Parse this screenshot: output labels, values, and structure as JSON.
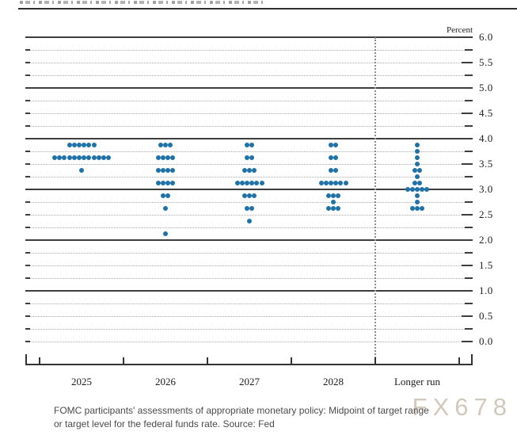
{
  "chart": {
    "percent_label": "Percent",
    "y_tick_labels": [
      "6.0",
      "5.5",
      "5.0",
      "4.5",
      "4.0",
      "3.5",
      "3.0",
      "2.5",
      "2.0",
      "1.5",
      "1.0",
      "0.5",
      "0.0"
    ],
    "x_tick_labels": [
      "2025",
      "2026",
      "2027",
      "2028",
      "Longer run"
    ]
  },
  "chart_data": {
    "type": "scatter",
    "subtype": "fomc-dot-plot",
    "title": "",
    "ylabel": "Percent",
    "ylim": [
      0.0,
      6.0
    ],
    "y_tick_step": 0.5,
    "y_minor_step": 0.25,
    "grid": "dotted minor gridlines; solid dark lines at integer percents; dotted vertical divider before Longer run",
    "legend_position": "none",
    "categories": [
      "2025",
      "2026",
      "2027",
      "2028",
      "Longer run"
    ],
    "series": [
      {
        "name": "2025",
        "dots": [
          {
            "rate": 3.875,
            "count": 6
          },
          {
            "rate": 3.625,
            "count": 12
          },
          {
            "rate": 3.375,
            "count": 1
          }
        ]
      },
      {
        "name": "2026",
        "dots": [
          {
            "rate": 3.875,
            "count": 3
          },
          {
            "rate": 3.625,
            "count": 4
          },
          {
            "rate": 3.375,
            "count": 4
          },
          {
            "rate": 3.125,
            "count": 4
          },
          {
            "rate": 2.875,
            "count": 2
          },
          {
            "rate": 2.625,
            "count": 1
          },
          {
            "rate": 2.125,
            "count": 1
          }
        ]
      },
      {
        "name": "2027",
        "dots": [
          {
            "rate": 3.875,
            "count": 2
          },
          {
            "rate": 3.625,
            "count": 2
          },
          {
            "rate": 3.375,
            "count": 3
          },
          {
            "rate": 3.125,
            "count": 6
          },
          {
            "rate": 2.875,
            "count": 3
          },
          {
            "rate": 2.625,
            "count": 2
          },
          {
            "rate": 2.375,
            "count": 1
          }
        ]
      },
      {
        "name": "2028",
        "dots": [
          {
            "rate": 3.875,
            "count": 2
          },
          {
            "rate": 3.625,
            "count": 2
          },
          {
            "rate": 3.375,
            "count": 2
          },
          {
            "rate": 3.125,
            "count": 6
          },
          {
            "rate": 2.875,
            "count": 3
          },
          {
            "rate": 2.75,
            "count": 1
          },
          {
            "rate": 2.625,
            "count": 3
          }
        ]
      },
      {
        "name": "Longer run",
        "dots": [
          {
            "rate": 3.875,
            "count": 1
          },
          {
            "rate": 3.75,
            "count": 1
          },
          {
            "rate": 3.625,
            "count": 1
          },
          {
            "rate": 3.5,
            "count": 1
          },
          {
            "rate": 3.375,
            "count": 2
          },
          {
            "rate": 3.25,
            "count": 1
          },
          {
            "rate": 3.125,
            "count": 2
          },
          {
            "rate": 3.0,
            "count": 5
          },
          {
            "rate": 2.875,
            "count": 1
          },
          {
            "rate": 2.75,
            "count": 1
          },
          {
            "rate": 2.625,
            "count": 3
          }
        ]
      }
    ],
    "dot_color": "#1e72a8"
  },
  "caption": {
    "line1": "FOMC participants' assessments of appropriate monetary policy: Midpoint of target range",
    "line2": "or target level for the federal funds rate. Source: Fed"
  },
  "watermark": "FX678",
  "colors": {
    "dot": "#1e72a8",
    "solid_grid": "#3d3d3d",
    "dotted_grid": "#a9a9a9",
    "caption_text": "#4a4a4a",
    "watermark_text": "#c9c0b0"
  }
}
